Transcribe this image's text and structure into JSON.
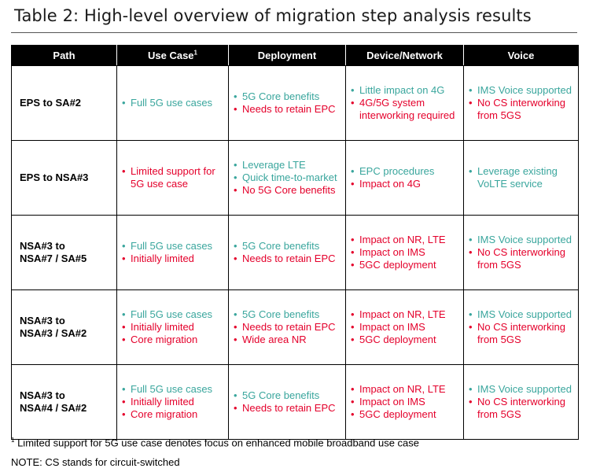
{
  "title": "Table 2: High-level overview of migration step analysis results",
  "headers": {
    "path": "Path",
    "use_case": "Use Case",
    "use_case_sup": "1",
    "deployment": "Deployment",
    "device_network": "Device/Network",
    "voice": "Voice"
  },
  "colors": {
    "positive": "#3aa69d",
    "negative": "#e4002b",
    "header_bg": "#000000"
  },
  "rows": [
    {
      "path": [
        "EPS to SA#2"
      ],
      "use_case": [
        {
          "text": "Full 5G use cases",
          "tone": "positive"
        }
      ],
      "deployment": [
        {
          "text": "5G Core benefits",
          "tone": "positive"
        },
        {
          "text": "Needs to retain EPC",
          "tone": "negative"
        }
      ],
      "device_network": [
        {
          "text": "Little impact on 4G",
          "tone": "positive"
        },
        {
          "text": "4G/5G system interworking required",
          "tone": "negative"
        }
      ],
      "voice": [
        {
          "text": "IMS Voice supported",
          "tone": "positive"
        },
        {
          "text": "No CS interworking from 5GS",
          "tone": "negative"
        }
      ]
    },
    {
      "path": [
        "EPS to NSA#3"
      ],
      "use_case": [
        {
          "text": "Limited support for 5G use case",
          "tone": "negative"
        }
      ],
      "deployment": [
        {
          "text": "Leverage LTE",
          "tone": "positive"
        },
        {
          "text": "Quick time-to-market",
          "tone": "positive"
        },
        {
          "text": "No 5G Core benefits",
          "tone": "negative"
        }
      ],
      "device_network": [
        {
          "text": "EPC procedures",
          "tone": "positive"
        },
        {
          "text": "Impact on 4G",
          "tone": "negative"
        }
      ],
      "voice": [
        {
          "text": "Leverage existing VoLTE service",
          "tone": "positive"
        }
      ]
    },
    {
      "path": [
        "NSA#3 to",
        "NSA#7 / SA#5"
      ],
      "use_case": [
        {
          "text": "Full 5G use cases",
          "tone": "positive"
        },
        {
          "text": "Initially limited",
          "tone": "negative"
        }
      ],
      "deployment": [
        {
          "text": "5G Core benefits",
          "tone": "positive"
        },
        {
          "text": "Needs to retain EPC",
          "tone": "negative"
        }
      ],
      "device_network": [
        {
          "text": "Impact on NR, LTE",
          "tone": "negative"
        },
        {
          "text": "Impact on IMS",
          "tone": "negative"
        },
        {
          "text": "5GC deployment",
          "tone": "negative"
        }
      ],
      "voice": [
        {
          "text": "IMS Voice supported",
          "tone": "positive"
        },
        {
          "text": "No CS interworking from 5GS",
          "tone": "negative"
        }
      ]
    },
    {
      "path": [
        "NSA#3 to",
        "NSA#3 / SA#2"
      ],
      "use_case": [
        {
          "text": "Full 5G use cases",
          "tone": "positive"
        },
        {
          "text": "Initially limited",
          "tone": "negative"
        },
        {
          "text": "Core migration",
          "tone": "negative"
        }
      ],
      "deployment": [
        {
          "text": "5G Core benefits",
          "tone": "positive"
        },
        {
          "text": "Needs to retain EPC",
          "tone": "negative"
        },
        {
          "text": "Wide area NR",
          "tone": "negative"
        }
      ],
      "device_network": [
        {
          "text": "Impact on NR, LTE",
          "tone": "negative"
        },
        {
          "text": "Impact on IMS",
          "tone": "negative"
        },
        {
          "text": "5GC deployment",
          "tone": "negative"
        }
      ],
      "voice": [
        {
          "text": "IMS Voice supported",
          "tone": "positive"
        },
        {
          "text": "No CS interworking from 5GS",
          "tone": "negative"
        }
      ]
    },
    {
      "path": [
        "NSA#3 to",
        "NSA#4 / SA#2"
      ],
      "use_case": [
        {
          "text": "Full 5G use cases",
          "tone": "positive"
        },
        {
          "text": "Initially limited",
          "tone": "negative"
        },
        {
          "text": "Core migration",
          "tone": "negative"
        }
      ],
      "deployment": [
        {
          "text": "5G Core benefits",
          "tone": "positive"
        },
        {
          "text": "Needs to retain EPC",
          "tone": "negative"
        }
      ],
      "device_network": [
        {
          "text": "Impact on NR, LTE",
          "tone": "negative"
        },
        {
          "text": "Impact on IMS",
          "tone": "negative"
        },
        {
          "text": "5GC deployment",
          "tone": "negative"
        }
      ],
      "voice": [
        {
          "text": "IMS Voice supported",
          "tone": "positive"
        },
        {
          "text": "No CS interworking from 5GS",
          "tone": "negative"
        }
      ]
    }
  ],
  "bullet": "•",
  "footnote": {
    "marker": "1",
    "text": "Limited support for 5G use case denotes focus on enhanced mobile broadband use case"
  },
  "note": "NOTE: CS stands for circuit-switched"
}
